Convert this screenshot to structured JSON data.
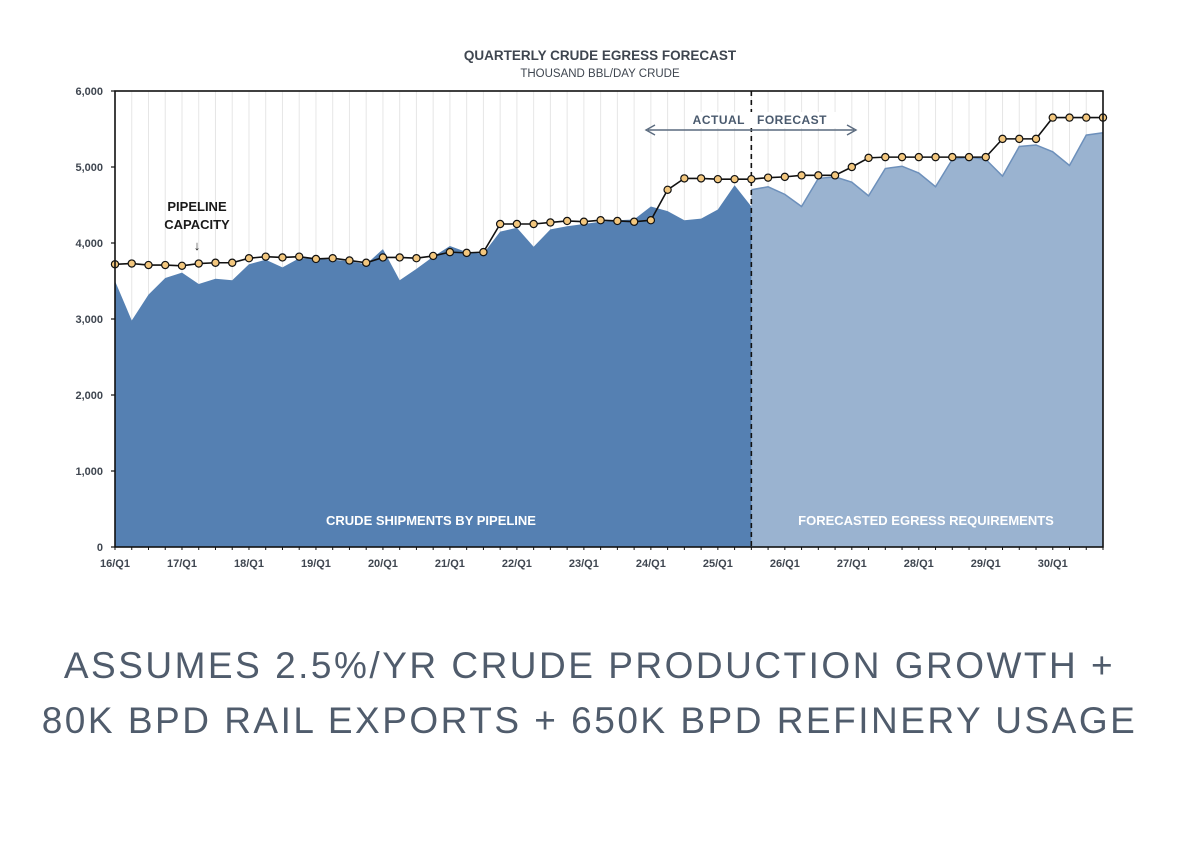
{
  "chart_data": {
    "type": "area",
    "title": "QUARTERLY CRUDE EGRESS FORECAST",
    "subtitle": "THOUSAND BBL/DAY CRUDE",
    "ylim": [
      0,
      6000
    ],
    "y_ticks": [
      "6,000",
      "5,000",
      "4,000",
      "3,000",
      "2,000",
      "1,000",
      "0"
    ],
    "y_tick_values": [
      6000,
      5000,
      4000,
      3000,
      2000,
      1000,
      0
    ],
    "x_range": [
      0,
      59
    ],
    "x_ticks": [
      {
        "label": "16/Q1",
        "x": 0
      },
      {
        "label": "17/Q1",
        "x": 4
      },
      {
        "label": "18/Q1",
        "x": 8
      },
      {
        "label": "19/Q1",
        "x": 12
      },
      {
        "label": "20/Q1",
        "x": 16
      },
      {
        "label": "21/Q1",
        "x": 20
      },
      {
        "label": "22/Q1",
        "x": 24
      },
      {
        "label": "23/Q1",
        "x": 28
      },
      {
        "label": "24/Q1",
        "x": 32
      },
      {
        "label": "25/Q1",
        "x": 36
      },
      {
        "label": "26/Q1",
        "x": 40
      },
      {
        "label": "27/Q1",
        "x": 44
      },
      {
        "label": "28/Q1",
        "x": 48
      },
      {
        "label": "29/Q1",
        "x": 52
      },
      {
        "label": "30/Q1",
        "x": 56
      }
    ],
    "divider_x": 38,
    "series": [
      {
        "name": "Crude Shipments by Pipeline",
        "kind": "area",
        "color": "#5580b2",
        "label": "CRUDE SHIPMENTS BY PIPELINE",
        "values": [
          3500,
          2980,
          3320,
          3540,
          3610,
          3460,
          3530,
          3510,
          3720,
          3780,
          3680,
          3800,
          3800,
          3780,
          3760,
          3720,
          3920,
          3510,
          3660,
          3820,
          3960,
          3880,
          3860,
          4150,
          4200,
          3950,
          4180,
          4220,
          4250,
          4280,
          4300,
          4310,
          4480,
          4420,
          4300,
          4320,
          4440,
          4760,
          4480,
          4700
        ]
      },
      {
        "name": "Forecasted Egress Requirements",
        "kind": "area",
        "color": "#9ab3d0",
        "edge_color": "#6d90bb",
        "label": "FORECASTED EGRESS REQUIREMENTS",
        "start_x": 38,
        "values": [
          4700,
          4740,
          4640,
          4480,
          4850,
          4870,
          4800,
          4620,
          4980,
          5010,
          4920,
          4740,
          5100,
          5130,
          5100,
          4880,
          5270,
          5290,
          5200,
          5020,
          5420,
          5450
        ]
      },
      {
        "name": "Pipeline Capacity",
        "kind": "line",
        "color": "#111111",
        "marker_fill": "#f3c77e",
        "values": [
          3720,
          3730,
          3710,
          3710,
          3700,
          3730,
          3740,
          3740,
          3800,
          3820,
          3810,
          3820,
          3790,
          3800,
          3770,
          3740,
          3810,
          3810,
          3800,
          3830,
          3880,
          3870,
          3880,
          4250,
          4250,
          4250,
          4270,
          4290,
          4280,
          4300,
          4290,
          4280,
          4300,
          4700,
          4850,
          4850,
          4840,
          4840,
          4840,
          4860,
          4870,
          4890,
          4890,
          4890,
          5000,
          5120,
          5130,
          5130,
          5130,
          5130,
          5130,
          5130,
          5130,
          5370,
          5370,
          5370,
          5650,
          5650,
          5650,
          5650
        ]
      }
    ],
    "annotations": {
      "pipeline_capacity_line1": "PIPELINE",
      "pipeline_capacity_line2": "CAPACITY",
      "pipeline_capacity_arrow": "↓",
      "actual": "ACTUAL",
      "forecast": "FORECAST"
    }
  },
  "caption": "ASSUMES 2.5%/YR CRUDE PRODUCTION GROWTH + 80K BPD RAIL EXPORTS + 650K BPD REFINERY USAGE",
  "colors": {
    "title": "#3f4650",
    "caption": "#505c6c",
    "grid": "#e6e6e6",
    "axis": "#111111",
    "annotation_arrow": "#5a6a7e"
  }
}
